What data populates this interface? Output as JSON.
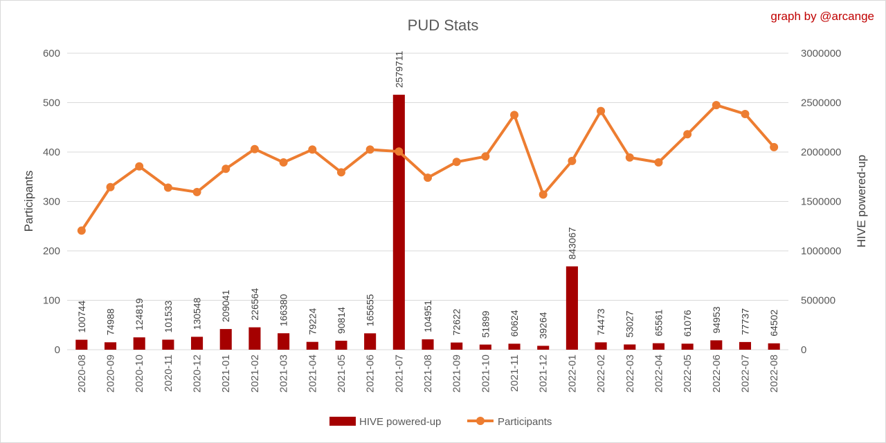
{
  "chart_data": {
    "type": "bar",
    "title": "PUD Stats",
    "credit": "graph by @arcange",
    "categories": [
      "2020-08",
      "2020-09",
      "2020-10",
      "2020-11",
      "2020-12",
      "2021-01",
      "2021-02",
      "2021-03",
      "2021-04",
      "2021-05",
      "2021-06",
      "2021-07",
      "2021-08",
      "2021-09",
      "2021-10",
      "2021-11",
      "2021-12",
      "2022-01",
      "2022-02",
      "2022-03",
      "2022-04",
      "2022-05",
      "2022-06",
      "2022-07",
      "2022-08"
    ],
    "series": [
      {
        "name": "HIVE powered-up",
        "type": "bar",
        "axis": "right",
        "color": "#a50000",
        "values": [
          100744,
          74988,
          124819,
          101533,
          130548,
          209041,
          226564,
          166380,
          79224,
          90814,
          165655,
          2579711,
          104951,
          72622,
          51899,
          60624,
          39264,
          843067,
          74473,
          53027,
          65561,
          61076,
          94953,
          77737,
          64502
        ],
        "labels": [
          "100744",
          "74988",
          "124819",
          "101533",
          "130548",
          "209041",
          "226564",
          "166380",
          "79224",
          "90814",
          "165655",
          "2579711",
          "104951",
          "72622",
          "51899",
          "60624",
          "39264",
          "843067",
          "74473",
          "53027",
          "65561",
          "61076",
          "94953",
          "77737",
          "64502"
        ]
      },
      {
        "name": "Participants",
        "type": "line",
        "axis": "left",
        "color": "#ed7d31",
        "values": [
          241,
          329,
          371,
          328,
          319,
          366,
          406,
          379,
          405,
          359,
          405,
          401,
          348,
          380,
          391,
          475,
          314,
          382,
          483,
          389,
          379,
          436,
          495,
          477,
          410
        ]
      }
    ],
    "ylabel": "Participants",
    "ylim": [
      0,
      600
    ],
    "yticks": [
      "0",
      "100",
      "200",
      "300",
      "400",
      "500",
      "600"
    ],
    "y2label": "HIVE powered-up",
    "y2lim": [
      0,
      3000000
    ],
    "y2ticks": [
      "0",
      "500000",
      "1000000",
      "1500000",
      "2000000",
      "2500000",
      "3000000"
    ],
    "grid": true,
    "legend": "bottom"
  }
}
